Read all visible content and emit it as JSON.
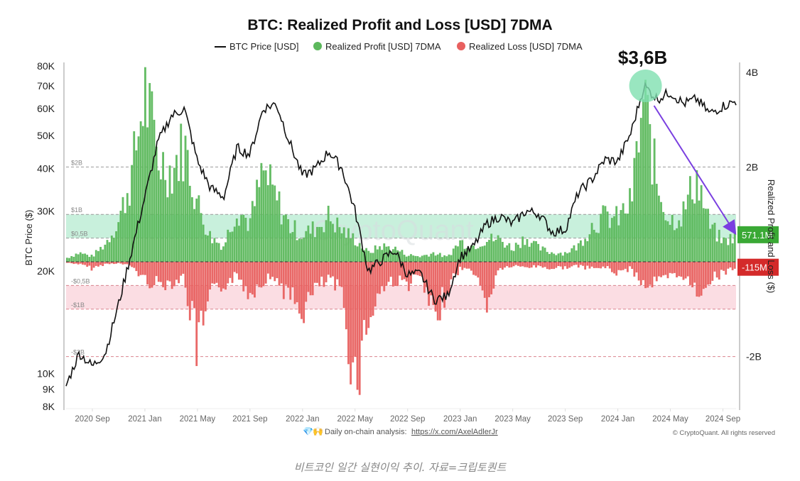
{
  "chart_data": {
    "type": "bar",
    "title": "BTC: Realized Profit and Loss [USD] 7DMA",
    "legend": {
      "placement": "top-center",
      "items": [
        {
          "label": "BTC Price [USD]",
          "color": "#111111",
          "marker": "line"
        },
        {
          "label": "Realized Profit [USD] 7DMA",
          "color": "#5cb85c",
          "marker": "dot"
        },
        {
          "label": "Realized Loss [USD] 7DMA",
          "color": "#e8605f",
          "marker": "dot"
        }
      ]
    },
    "x_axis": {
      "ticks": [
        "2020 Sep",
        "2021 Jan",
        "2021 May",
        "2021 Sep",
        "2022 Jan",
        "2022 May",
        "2022 Sep",
        "2023 Jan",
        "2023 May",
        "2023 Sep",
        "2024 Jan",
        "2024 May",
        "2024 Sep"
      ],
      "range": [
        "2020-07",
        "2024-10"
      ]
    },
    "y_left": {
      "label": "BTC Price ($)",
      "scale": "log",
      "ticks": [
        "80K",
        "70K",
        "60K",
        "50K",
        "40K",
        "30K",
        "20K",
        "10K",
        "9K",
        "8K"
      ],
      "tick_values": [
        80000,
        70000,
        60000,
        50000,
        40000,
        30000,
        20000,
        10000,
        9000,
        8000
      ],
      "range": [
        8000,
        80000
      ]
    },
    "y_right": {
      "label": "Realized Profit and Loss ($)",
      "ticks": [
        "4B",
        "2B",
        "-2B"
      ],
      "tick_values": [
        4,
        2,
        -2
      ],
      "unit": "B",
      "range": [
        -3.05,
        4.1
      ]
    },
    "reference_lines": [
      {
        "label": "$2B",
        "value": 2,
        "color": "#999999"
      },
      {
        "label": "$1B",
        "value": 1,
        "color": "#999999"
      },
      {
        "label": "$0,5B",
        "value": 0.5,
        "color": "#999999"
      },
      {
        "label": "-$0,5B",
        "value": -0.5,
        "color": "#d9828e"
      },
      {
        "label": "-$1B",
        "value": -1,
        "color": "#d9828e"
      },
      {
        "label": "-$2B",
        "value": -2,
        "color": "#d9828e"
      }
    ],
    "bands": [
      {
        "from": 0.5,
        "to": 1,
        "color": "#c8f0dc"
      },
      {
        "from": -1,
        "to": -0.5,
        "color": "#fbdde3"
      }
    ],
    "current_values": [
      {
        "label": "571.1M",
        "value": 0.5711,
        "color": "#3aa935"
      },
      {
        "label": "-115M",
        "value": -0.115,
        "color": "#d42a2a"
      }
    ],
    "annotation": {
      "label": "$3,6B",
      "value": 3.6,
      "date": "2024-03",
      "circle_color": "#7fe0b0",
      "arrow_color": "#7a3fe0",
      "arrow_to_date": "2024-09"
    },
    "series": [
      {
        "name": "BTC Price [USD]",
        "type": "line",
        "x": [
          "2020-07",
          "2020-08",
          "2020-09",
          "2020-10",
          "2020-11",
          "2020-12",
          "2021-01",
          "2021-02",
          "2021-03",
          "2021-04",
          "2021-05",
          "2021-06",
          "2021-07",
          "2021-08",
          "2021-09",
          "2021-10",
          "2021-11",
          "2021-12",
          "2022-01",
          "2022-02",
          "2022-03",
          "2022-04",
          "2022-05",
          "2022-06",
          "2022-07",
          "2022-08",
          "2022-09",
          "2022-10",
          "2022-11",
          "2022-12",
          "2023-01",
          "2023-02",
          "2023-03",
          "2023-04",
          "2023-05",
          "2023-06",
          "2023-07",
          "2023-08",
          "2023-09",
          "2023-10",
          "2023-11",
          "2023-12",
          "2024-01",
          "2024-02",
          "2024-03",
          "2024-04",
          "2024-05",
          "2024-06",
          "2024-07",
          "2024-08",
          "2024-09",
          "2024-10"
        ],
        "values": [
          9200,
          11500,
          10500,
          11500,
          16000,
          23000,
          33000,
          48000,
          57000,
          60000,
          42000,
          35000,
          33000,
          46000,
          44000,
          60000,
          62000,
          48000,
          38000,
          40000,
          45000,
          40000,
          30000,
          20000,
          21500,
          23000,
          19500,
          19600,
          16500,
          16800,
          22000,
          23500,
          27500,
          29000,
          27500,
          30000,
          29500,
          26000,
          26500,
          34000,
          37000,
          42500,
          42000,
          51000,
          70000,
          64000,
          67000,
          62000,
          64000,
          58000,
          61000,
          63000
        ]
      },
      {
        "name": "Realized Profit [USD] 7DMA",
        "type": "area",
        "unit": "USD billions",
        "x": [
          "2020-07",
          "2020-08",
          "2020-09",
          "2020-10",
          "2020-11",
          "2020-12",
          "2021-01",
          "2021-02",
          "2021-03",
          "2021-04",
          "2021-05",
          "2021-06",
          "2021-07",
          "2021-08",
          "2021-09",
          "2021-10",
          "2021-11",
          "2021-12",
          "2022-01",
          "2022-02",
          "2022-03",
          "2022-04",
          "2022-05",
          "2022-06",
          "2022-07",
          "2022-08",
          "2022-09",
          "2022-10",
          "2022-11",
          "2022-12",
          "2023-01",
          "2023-02",
          "2023-03",
          "2023-04",
          "2023-05",
          "2023-06",
          "2023-07",
          "2023-08",
          "2023-09",
          "2023-10",
          "2023-11",
          "2023-12",
          "2024-01",
          "2024-02",
          "2024-03",
          "2024-04",
          "2024-05",
          "2024-06",
          "2024-07",
          "2024-08",
          "2024-09",
          "2024-10"
        ],
        "values": [
          0.08,
          0.2,
          0.12,
          0.4,
          0.9,
          1.9,
          3.8,
          2.3,
          2.0,
          2.6,
          1.3,
          0.55,
          0.35,
          1.2,
          0.85,
          2.0,
          1.4,
          0.8,
          0.6,
          0.75,
          1.0,
          0.7,
          0.5,
          0.2,
          0.35,
          0.3,
          0.15,
          0.12,
          0.2,
          0.1,
          0.45,
          0.35,
          0.5,
          0.5,
          0.3,
          0.55,
          0.3,
          0.2,
          0.2,
          0.35,
          0.8,
          1.0,
          0.95,
          1.3,
          3.6,
          1.7,
          0.9,
          1.1,
          1.9,
          0.8,
          0.45,
          0.57
        ]
      },
      {
        "name": "Realized Loss [USD] 7DMA",
        "type": "area",
        "unit": "USD billions",
        "x": [
          "2020-07",
          "2020-08",
          "2020-09",
          "2020-10",
          "2020-11",
          "2020-12",
          "2021-01",
          "2021-02",
          "2021-03",
          "2021-04",
          "2021-05",
          "2021-06",
          "2021-07",
          "2021-08",
          "2021-09",
          "2021-10",
          "2021-11",
          "2021-12",
          "2022-01",
          "2022-02",
          "2022-03",
          "2022-04",
          "2022-05",
          "2022-06",
          "2022-07",
          "2022-08",
          "2022-09",
          "2022-10",
          "2022-11",
          "2022-12",
          "2023-01",
          "2023-02",
          "2023-03",
          "2023-04",
          "2023-05",
          "2023-06",
          "2023-07",
          "2023-08",
          "2023-09",
          "2023-10",
          "2023-11",
          "2023-12",
          "2024-01",
          "2024-02",
          "2024-03",
          "2024-04",
          "2024-05",
          "2024-06",
          "2024-07",
          "2024-08",
          "2024-09",
          "2024-10"
        ],
        "values": [
          -0.02,
          -0.05,
          -0.15,
          -0.05,
          -0.03,
          -0.1,
          -0.4,
          -0.5,
          -0.45,
          -0.35,
          -1.95,
          -0.8,
          -0.5,
          -0.3,
          -0.7,
          -0.4,
          -0.35,
          -0.8,
          -1.1,
          -0.6,
          -0.4,
          -0.7,
          -2.7,
          -1.3,
          -0.6,
          -0.4,
          -0.5,
          -0.3,
          -1.4,
          -0.6,
          -0.15,
          -0.2,
          -0.95,
          -0.15,
          -0.1,
          -0.12,
          -0.1,
          -0.15,
          -0.12,
          -0.1,
          -0.15,
          -0.12,
          -0.25,
          -0.15,
          -0.5,
          -0.45,
          -0.35,
          -0.3,
          -0.7,
          -0.4,
          -0.25,
          -0.115
        ]
      }
    ]
  },
  "watermark": "CryptoQuant",
  "footer": {
    "icons": [
      "gem-icon",
      "raised-hands-icon"
    ],
    "text": "Daily on-chain analysis: ",
    "link": "https://x.com/AxelAdlerJr",
    "copyright": "© CryptoQuant. All rights reserved"
  },
  "caption": "비트코인 일간 실현이익 추이. 자료=크립토퀀트"
}
